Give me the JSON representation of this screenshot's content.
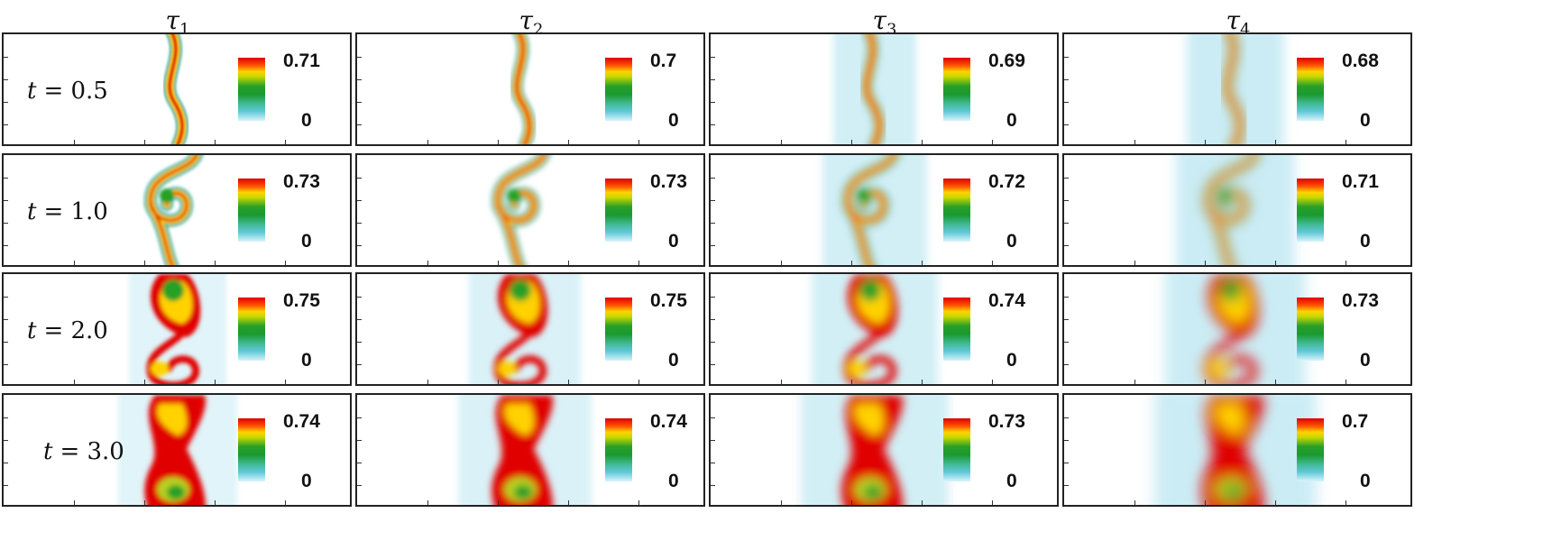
{
  "columns": [
    {
      "symbol": "τ",
      "sub": "1"
    },
    {
      "symbol": "τ",
      "sub": "2"
    },
    {
      "symbol": "τ",
      "sub": "3"
    },
    {
      "symbol": "τ",
      "sub": "4"
    }
  ],
  "rows": [
    {
      "label_var": "t",
      "label_val": "= 0.5",
      "max": [
        "0.71",
        "0.7",
        "0.69",
        "0.68"
      ],
      "min": "0"
    },
    {
      "label_var": "t",
      "label_val": "= 1.0",
      "max": [
        "0.73",
        "0.73",
        "0.72",
        "0.71"
      ],
      "min": "0"
    },
    {
      "label_var": "t",
      "label_val": "= 2.0",
      "max": [
        "0.75",
        "0.75",
        "0.74",
        "0.73"
      ],
      "min": "0"
    },
    {
      "label_var": "t",
      "label_val": "= 3.0",
      "max": [
        "0.74",
        "0.74",
        "0.73",
        "0.7"
      ],
      "min": "0"
    }
  ],
  "colormap": [
    "#e00000",
    "#ff5000",
    "#ffd200",
    "#28a028",
    "#60c8d8",
    "#d8f4fa"
  ]
}
